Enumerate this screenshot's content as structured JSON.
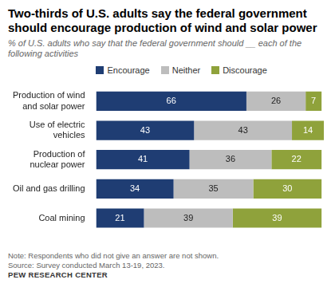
{
  "chart_data": {
    "type": "bar",
    "orientation": "horizontal",
    "stacked": true,
    "data_labels": true,
    "tick_labels": "y",
    "grid": false,
    "legend": "top",
    "title": "Two-thirds of U.S. adults say the federal government should encourage production of wind and solar power",
    "subtitle": "% of U.S. adults who say that the federal government should __ each of the following activities",
    "note": "Note: Respondents who did not give an answer are not shown.",
    "source": "Source: Survey conducted March 13-19, 2023.",
    "credit": "PEW RESEARCH CENTER",
    "categories": [
      "Production of wind and solar power",
      "Use of electric vehicles",
      "Production of nuclear power",
      "Oil and gas drilling",
      "Coal mining"
    ],
    "xlim": [
      0,
      100
    ],
    "series": [
      {
        "name": "Encourage",
        "color": "#1f3d73",
        "values": [
          66,
          43,
          41,
          34,
          21
        ]
      },
      {
        "name": "Neither",
        "color": "#bdbdbd",
        "values": [
          26,
          43,
          36,
          35,
          39
        ]
      },
      {
        "name": "Discourage",
        "color": "#8fa23b",
        "values": [
          7,
          14,
          22,
          30,
          39
        ]
      }
    ]
  }
}
